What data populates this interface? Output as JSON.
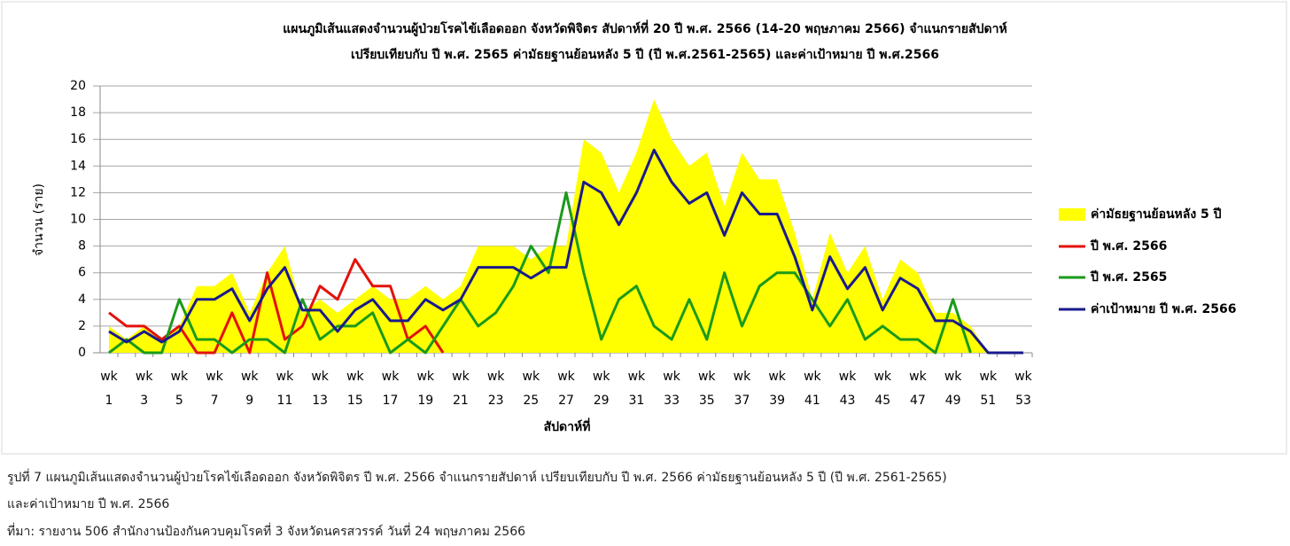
{
  "chart_data": {
    "type": "line",
    "title": [
      "แผนภูมิเส้นแสดงจำนวนผู้ป่วยโรคไข้เลือดออก จังหวัดพิจิตร สัปดาห์ที่ 20 ปี พ.ศ. 2566 (14-20 พฤษภาคม 2566) จำแนกรายสัปดาห์",
      "เปรียบเทียบกับ ปี พ.ศ. 2565 ค่ามัธยฐานย้อนหลัง 5 ปี (ปี พ.ศ.2561-2565) และค่าเป้าหมาย ปี พ.ศ.2566"
    ],
    "x_label": "สัปดาห์ที่",
    "y_label": "จำนวน (ราย)",
    "categories": [
      "wk 1",
      null,
      "wk 3",
      null,
      "wk 5",
      null,
      "wk 7",
      null,
      "wk 9",
      null,
      "wk 11",
      null,
      "wk 13",
      null,
      "wk 15",
      null,
      "wk 17",
      null,
      "wk 19",
      null,
      "wk 21",
      null,
      "wk 23",
      null,
      "wk 25",
      null,
      "wk 27",
      null,
      "wk 29",
      null,
      "wk 31",
      null,
      "wk 33",
      null,
      "wk 35",
      null,
      "wk 37",
      null,
      "wk 39",
      null,
      "wk 41",
      null,
      "wk 43",
      null,
      "wk 45",
      null,
      "wk 47",
      null,
      "wk 49",
      null,
      "wk 51",
      null,
      "wk 53"
    ],
    "ylim": [
      0,
      20
    ],
    "yticks": [
      0,
      2,
      4,
      6,
      8,
      10,
      12,
      14,
      16,
      18,
      20
    ],
    "grid": true,
    "legend": "right",
    "series": [
      {
        "name": "ค่ามัธยฐานย้อนหลัง 5 ปี",
        "kind": "area",
        "color": "#ffff00",
        "values": [
          2,
          1,
          2,
          1,
          2,
          5,
          5,
          6,
          3,
          6,
          8,
          3,
          4,
          3,
          4,
          5,
          4,
          4,
          5,
          4,
          5,
          8,
          8,
          8,
          7,
          8,
          8,
          16,
          15,
          12,
          15,
          19,
          16,
          14,
          15,
          11,
          15,
          13,
          13,
          9,
          4,
          9,
          6,
          8,
          4,
          7,
          6,
          3,
          3,
          2,
          0,
          0,
          0
        ]
      },
      {
        "name": "ปี พ.ศ. 2566",
        "kind": "line",
        "color": "#e3120b",
        "values": [
          3,
          2,
          2,
          1,
          2,
          0,
          0,
          3,
          0,
          6,
          1,
          2,
          5,
          4,
          7,
          5,
          5,
          1,
          2,
          0,
          null,
          null,
          null,
          null,
          null,
          null,
          null,
          null,
          null,
          null,
          null,
          null,
          null,
          null,
          null,
          null,
          null,
          null,
          null,
          null,
          null,
          null,
          null,
          null,
          null,
          null,
          null,
          null,
          null,
          null,
          null,
          null,
          null
        ]
      },
      {
        "name": "ปี พ.ศ. 2565",
        "kind": "line",
        "color": "#1a9a1a",
        "values": [
          0,
          1,
          0,
          0,
          4,
          1,
          1,
          0,
          1,
          1,
          0,
          4,
          1,
          2,
          2,
          3,
          0,
          1,
          0,
          2,
          4,
          2,
          3,
          5,
          8,
          6,
          12,
          6,
          1,
          4,
          5,
          2,
          1,
          4,
          1,
          6,
          2,
          5,
          6,
          6,
          4,
          2,
          4,
          1,
          2,
          1,
          1,
          0,
          4,
          0,
          null,
          null,
          null
        ]
      },
      {
        "name": "ค่าเป้าหมาย ปี พ.ศ. 2566",
        "kind": "line",
        "color": "#1a1a8c",
        "values": [
          1.6,
          0.8,
          1.6,
          0.8,
          1.6,
          4,
          4,
          4.8,
          2.4,
          4.8,
          6.4,
          3.2,
          3.2,
          1.6,
          3.2,
          4,
          2.4,
          2.4,
          4,
          3.2,
          4,
          6.4,
          6.4,
          6.4,
          5.6,
          6.4,
          6.4,
          12.8,
          12,
          9.6,
          12,
          15.2,
          12.8,
          11.2,
          12,
          8.8,
          12,
          10.4,
          10.4,
          7.2,
          3.2,
          7.2,
          4.8,
          6.4,
          3.2,
          5.6,
          4.8,
          2.4,
          2.4,
          1.6,
          0,
          0,
          0
        ]
      }
    ]
  },
  "caption": [
    "รูปที่ 7 แผนภูมิเส้นแสดงจำนวนผู้ป่วยโรคไข้เลือดออก จังหวัดพิจิตร ปี พ.ศ. 2566 จำแนกรายสัปดาห์ เปรียบเทียบกับ ปี พ.ศ. 2566 ค่ามัธยฐานย้อนหลัง 5 ปี (ปี พ.ศ. 2561-2565)",
    "และค่าเป้าหมาย ปี พ.ศ. 2566",
    "ที่มา: รายงาน 506 สำนักงานป้องกันควบคุมโรคที่ 3 จังหวัดนครสวรรค์ วันที่ 24 พฤษภาคม  2566"
  ]
}
